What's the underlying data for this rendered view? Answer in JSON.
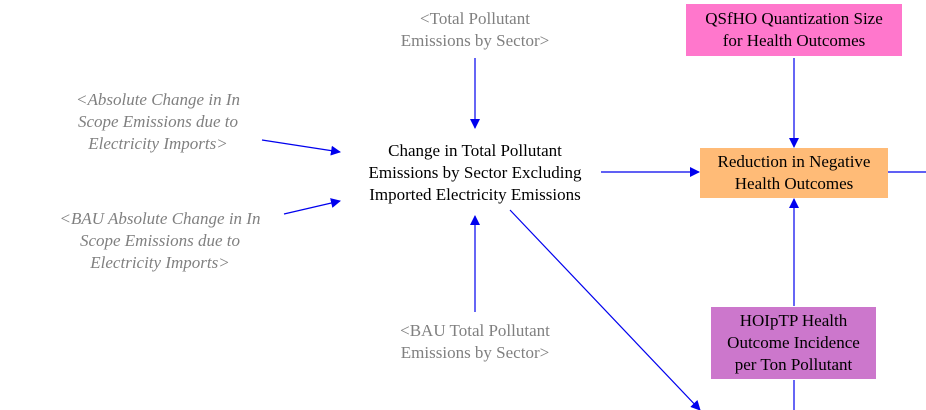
{
  "colors": {
    "arrow": "#0000ee",
    "shadow_text": "#808080",
    "qsfho_fill": "#ff77cc",
    "reduction_fill": "#ffbb77",
    "hoiptp_fill": "#cc77cc"
  },
  "nodes": {
    "total_pollutant_shadow": {
      "line1": "<Total Pollutant",
      "line2": "Emissions by Sector>"
    },
    "abs_change_shadow": {
      "line1": "<Absolute Change in In",
      "line2": "Scope Emissions due to",
      "line3": "Electricity Imports>"
    },
    "bau_abs_change_shadow": {
      "line1": "<BAU Absolute Change in In",
      "line2": "Scope Emissions due to",
      "line3": "Electricity Imports>"
    },
    "bau_total_pollutant_shadow": {
      "line1": "<BAU Total Pollutant",
      "line2": "Emissions by Sector>"
    },
    "change_total": {
      "line1": "Change in Total Pollutant",
      "line2": "Emissions by Sector Excluding",
      "line3": "Imported Electricity Emissions"
    },
    "qsfho": {
      "line1": "QSfHO Quantization Size",
      "line2": "for Health Outcomes"
    },
    "reduction": {
      "line1": "Reduction in Negative",
      "line2": "Health Outcomes"
    },
    "hoiptp": {
      "line1": "HOIpTP Health",
      "line2": "Outcome Incidence",
      "line3": "per Ton Pollutant"
    }
  }
}
